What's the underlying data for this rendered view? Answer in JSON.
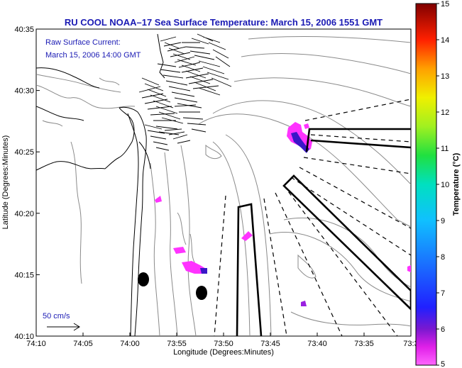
{
  "title": "RU COOL  NOAA–17  Sea Surface Temperature:  March 15, 2006 1551 GMT",
  "annotation": {
    "line1": "Raw Surface Current:",
    "line2": "March 15, 2006 14:00 GMT"
  },
  "scale_label": "50 cm/s",
  "x_axis": {
    "label": "Longitude (Degrees:Minutes)",
    "ticks": [
      "74:10",
      "74:05",
      "74:00",
      "73:55",
      "73:50",
      "73:45",
      "73:40",
      "73:35",
      "73:3"
    ]
  },
  "y_axis": {
    "label": "Latitude (Degrees:Minutes)",
    "ticks": [
      "40:35",
      "40:30",
      "40:25",
      "40:20",
      "40:15",
      "40:10"
    ]
  },
  "colorbar": {
    "label": "Temperature (°C)",
    "ticks": [
      "15",
      "14",
      "13",
      "12",
      "11",
      "10",
      "9",
      "8",
      "7",
      "6",
      "5"
    ],
    "min": 5,
    "max": 15
  },
  "colors": {
    "title": "#1a1ab4",
    "sst_patch": "#ff33ff",
    "sst_cold": "#3a16c8",
    "coast": "#000000",
    "bathymetry": "#8a8a8a"
  }
}
